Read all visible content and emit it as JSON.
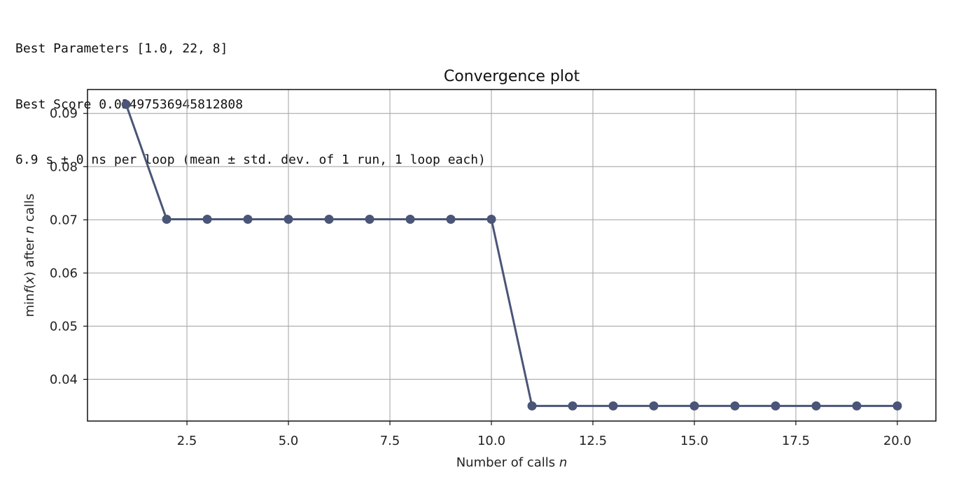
{
  "output": {
    "lines": [
      "Best Parameters [1.0, 22, 8]",
      "Best Score 0.03497536945812808",
      "6.9 s ± 0 ns per loop (mean ± std. dev. of 1 run, 1 loop each)"
    ]
  },
  "chart_data": {
    "type": "line",
    "title": "Convergence plot",
    "xlabel": "Number of calls n",
    "ylabel": "min f(x) after n calls",
    "x": [
      1,
      2,
      3,
      4,
      5,
      6,
      7,
      8,
      9,
      10,
      11,
      12,
      13,
      14,
      15,
      16,
      17,
      18,
      19,
      20
    ],
    "series": [
      {
        "values": [
          0.0917,
          0.0701,
          0.0701,
          0.0701,
          0.0701,
          0.0701,
          0.0701,
          0.0701,
          0.0701,
          0.0701,
          0.035,
          0.035,
          0.035,
          0.035,
          0.035,
          0.035,
          0.035,
          0.035,
          0.035,
          0.035
        ],
        "color": "#4a5577",
        "marker": "circle"
      }
    ],
    "xticks": [
      2.5,
      5.0,
      7.5,
      10.0,
      12.5,
      15.0,
      17.5,
      20.0
    ],
    "xtick_labels": [
      "2.5",
      "5.0",
      "7.5",
      "10.0",
      "12.5",
      "15.0",
      "17.5",
      "20.0"
    ],
    "yticks": [
      0.04,
      0.05,
      0.06,
      0.07,
      0.08,
      0.09
    ],
    "ytick_labels": [
      "0.04",
      "0.05",
      "0.06",
      "0.07",
      "0.08",
      "0.09"
    ],
    "xlim": [
      0.05,
      20.95
    ],
    "ylim": [
      0.03216,
      0.0945
    ],
    "grid": true,
    "legend": "none"
  }
}
